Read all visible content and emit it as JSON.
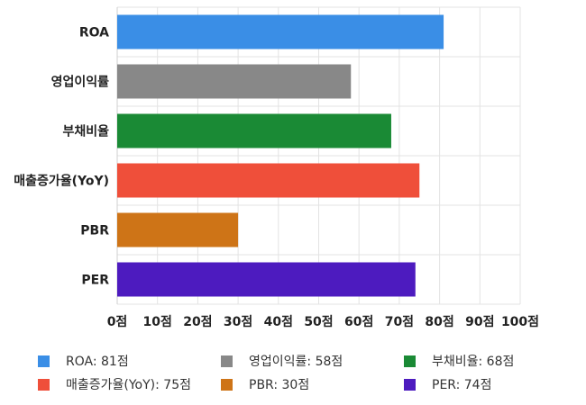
{
  "chart_data": {
    "type": "bar",
    "orientation": "horizontal",
    "categories": [
      "ROA",
      "영업이익률",
      "부채비율",
      "매출증가율(YoY)",
      "PBR",
      "PER"
    ],
    "values": [
      81,
      58,
      68,
      75,
      30,
      74
    ],
    "colors": [
      "#3a8ee6",
      "#888888",
      "#1a8a35",
      "#ef4f3a",
      "#ce7417",
      "#4d1bbf"
    ],
    "xlim": [
      0,
      100
    ],
    "xticks": [
      "0점",
      "10점",
      "20점",
      "30점",
      "40점",
      "50점",
      "60점",
      "70점",
      "80점",
      "90점",
      "100점"
    ],
    "grid": true,
    "legend_position": "bottom"
  },
  "legend": [
    {
      "label": "ROA: 81점",
      "color": "#3a8ee6"
    },
    {
      "label": "영업이익률: 58점",
      "color": "#888888"
    },
    {
      "label": "부채비율: 68점",
      "color": "#1a8a35"
    },
    {
      "label": "매출증가율(YoY): 75점",
      "color": "#ef4f3a"
    },
    {
      "label": "PBR: 30점",
      "color": "#ce7417"
    },
    {
      "label": "PER: 74점",
      "color": "#4d1bbf"
    }
  ]
}
